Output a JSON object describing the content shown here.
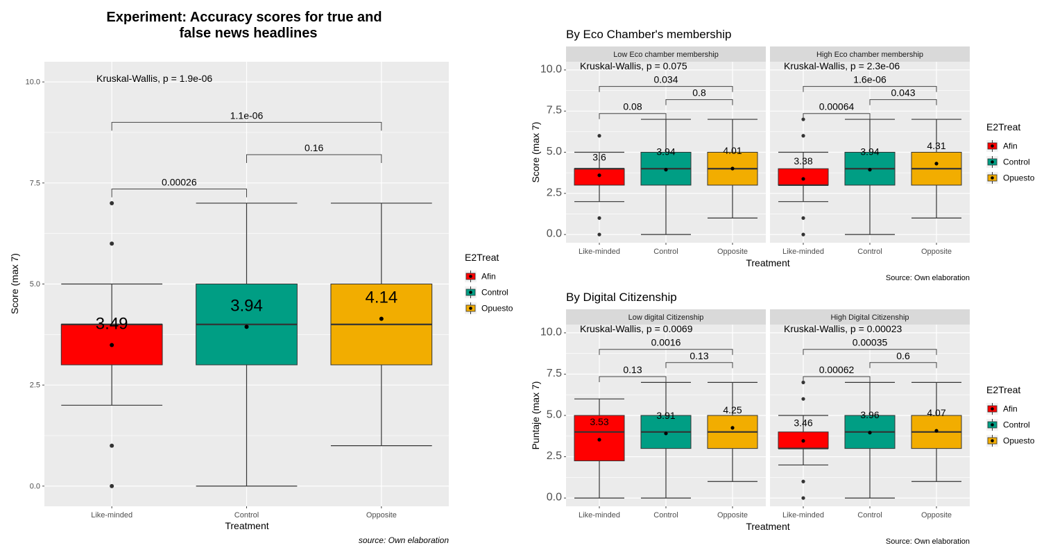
{
  "colors": {
    "Afin": "#ff0000",
    "Control": "#009e84",
    "Opuesto": "#f2ad00",
    "panel_bg": "#ebebeb",
    "strip_bg": "#d9d9d9",
    "grid": "#ffffff"
  },
  "legend": {
    "title": "E2Treat",
    "items": [
      "Afin",
      "Control",
      "Opuesto"
    ]
  },
  "chart_data": [
    {
      "id": "main",
      "type": "box",
      "title": "Experiment: Accuracy scores for true and false news headlines",
      "title_lines": [
        "Experiment: Accuracy scores for true and",
        "false news headlines"
      ],
      "xlabel": "Treatment",
      "ylabel": "Score (max 7)",
      "caption": "source: Own elaboration",
      "ylim": [
        -0.5,
        10.5
      ],
      "yticks": [
        0.0,
        2.5,
        5.0,
        7.5,
        10.0
      ],
      "ytick_labels": [
        "0.0",
        "2.5",
        "5.0",
        "7.5",
        "10.0"
      ],
      "categories": [
        "Like-minded",
        "Control",
        "Opposite"
      ],
      "groups": [
        "Afin",
        "Control",
        "Opuesto"
      ],
      "test_label": "Kruskal-Wallis, p = 1.9e-06",
      "boxes": [
        {
          "q1": 3,
          "median": 4,
          "q3": 4,
          "low": 2,
          "high": 5,
          "mean": 3.49,
          "mean_label": "3.49",
          "outliers": [
            0,
            1,
            6,
            7
          ]
        },
        {
          "q1": 3,
          "median": 4,
          "q3": 5,
          "low": 0,
          "high": 7,
          "mean": 3.94,
          "mean_label": "3.94",
          "outliers": []
        },
        {
          "q1": 3,
          "median": 4,
          "q3": 5,
          "low": 1,
          "high": 7,
          "mean": 4.14,
          "mean_label": "4.14",
          "outliers": []
        }
      ],
      "comparisons": [
        {
          "from": 0,
          "to": 1,
          "p": "0.00026",
          "y": 7.35
        },
        {
          "from": 1,
          "to": 2,
          "p": "0.16",
          "y": 8.2
        },
        {
          "from": 0,
          "to": 2,
          "p": "1.1e-06",
          "y": 9.0
        }
      ]
    },
    {
      "id": "eco",
      "type": "box",
      "title": "By Eco Chamber's membership",
      "xlabel": "Treatment",
      "ylabel": "Score (max 7)",
      "caption": "Source: Own elaboration",
      "ylim": [
        -0.5,
        10.5
      ],
      "yticks": [
        0.0,
        2.5,
        5.0,
        7.5,
        10.0
      ],
      "ytick_labels": [
        "0.0",
        "2.5",
        "5.0",
        "7.5",
        "10.0"
      ],
      "categories": [
        "Like-minded",
        "Control",
        "Opposite"
      ],
      "facets": [
        {
          "strip": "Low Eco chamber membership",
          "test_label": "Kruskal-Wallis, p = 0.075",
          "boxes": [
            {
              "q1": 3,
              "median": 4,
              "q3": 4,
              "low": 2,
              "high": 5,
              "mean": 3.6,
              "mean_label": "3.6",
              "outliers": [
                0,
                1,
                6
              ]
            },
            {
              "q1": 3,
              "median": 4,
              "q3": 5,
              "low": 0,
              "high": 7,
              "mean": 3.94,
              "mean_label": "3.94",
              "outliers": []
            },
            {
              "q1": 3,
              "median": 4,
              "q3": 5,
              "low": 1,
              "high": 7,
              "mean": 4.01,
              "mean_label": "4.01",
              "outliers": []
            }
          ],
          "comparisons": [
            {
              "from": 0,
              "to": 1,
              "p": "0.08",
              "y": 7.35
            },
            {
              "from": 1,
              "to": 2,
              "p": "0.8",
              "y": 8.2
            },
            {
              "from": 0,
              "to": 2,
              "p": "0.034",
              "y": 9.0
            }
          ]
        },
        {
          "strip": "High Eco chamber membership",
          "test_label": "Kruskal-Wallis, p = 2.3e-06",
          "boxes": [
            {
              "q1": 3,
              "median": 3,
              "q3": 4,
              "low": 2,
              "high": 5,
              "mean": 3.38,
              "mean_label": "3.38",
              "outliers": [
                0,
                1,
                6,
                7
              ]
            },
            {
              "q1": 3,
              "median": 4,
              "q3": 5,
              "low": 0,
              "high": 7,
              "mean": 3.94,
              "mean_label": "3.94",
              "outliers": []
            },
            {
              "q1": 3,
              "median": 4,
              "q3": 5,
              "low": 1,
              "high": 7,
              "mean": 4.31,
              "mean_label": "4.31",
              "outliers": []
            }
          ],
          "comparisons": [
            {
              "from": 0,
              "to": 1,
              "p": "0.00064",
              "y": 7.35
            },
            {
              "from": 1,
              "to": 2,
              "p": "0.043",
              "y": 8.2
            },
            {
              "from": 0,
              "to": 2,
              "p": "1.6e-06",
              "y": 9.0
            }
          ]
        }
      ]
    },
    {
      "id": "digital",
      "type": "box",
      "title": "By Digital Citizenship",
      "xlabel": "Treatment",
      "ylabel": "Puntaje (max 7)",
      "caption": "Source: Own elaboration",
      "ylim": [
        -0.5,
        10.5
      ],
      "yticks": [
        0.0,
        2.5,
        5.0,
        7.5,
        10.0
      ],
      "ytick_labels": [
        "0.0",
        "2.5",
        "5.0",
        "7.5",
        "10.0"
      ],
      "categories": [
        "Like-minded",
        "Control",
        "Opposite"
      ],
      "facets": [
        {
          "strip": "Low digital Citizenship",
          "test_label": "Kruskal-Wallis, p = 0.0069",
          "boxes": [
            {
              "q1": 2.25,
              "median": 4,
              "q3": 5,
              "low": 0,
              "high": 6,
              "mean": 3.53,
              "mean_label": "3.53",
              "outliers": []
            },
            {
              "q1": 3,
              "median": 4,
              "q3": 5,
              "low": 0,
              "high": 7,
              "mean": 3.91,
              "mean_label": "3.91",
              "outliers": []
            },
            {
              "q1": 3,
              "median": 4,
              "q3": 5,
              "low": 1,
              "high": 7,
              "mean": 4.25,
              "mean_label": "4.25",
              "outliers": []
            }
          ],
          "comparisons": [
            {
              "from": 0,
              "to": 1,
              "p": "0.13",
              "y": 7.35
            },
            {
              "from": 1,
              "to": 2,
              "p": "0.13",
              "y": 8.2
            },
            {
              "from": 0,
              "to": 2,
              "p": "0.0016",
              "y": 9.0
            }
          ]
        },
        {
          "strip": "High Digital Citizenship",
          "test_label": "Kruskal-Wallis, p = 0.00023",
          "boxes": [
            {
              "q1": 3,
              "median": 3,
              "q3": 4,
              "low": 2,
              "high": 5,
              "mean": 3.46,
              "mean_label": "3.46",
              "outliers": [
                0,
                1,
                6,
                7
              ]
            },
            {
              "q1": 3,
              "median": 4,
              "q3": 5,
              "low": 0,
              "high": 7,
              "mean": 3.96,
              "mean_label": "3.96",
              "outliers": []
            },
            {
              "q1": 3,
              "median": 4,
              "q3": 5,
              "low": 1,
              "high": 7,
              "mean": 4.07,
              "mean_label": "4.07",
              "outliers": []
            }
          ],
          "comparisons": [
            {
              "from": 0,
              "to": 1,
              "p": "0.00062",
              "y": 7.35
            },
            {
              "from": 1,
              "to": 2,
              "p": "0.6",
              "y": 8.2
            },
            {
              "from": 0,
              "to": 2,
              "p": "0.00035",
              "y": 9.0
            }
          ]
        }
      ]
    }
  ]
}
